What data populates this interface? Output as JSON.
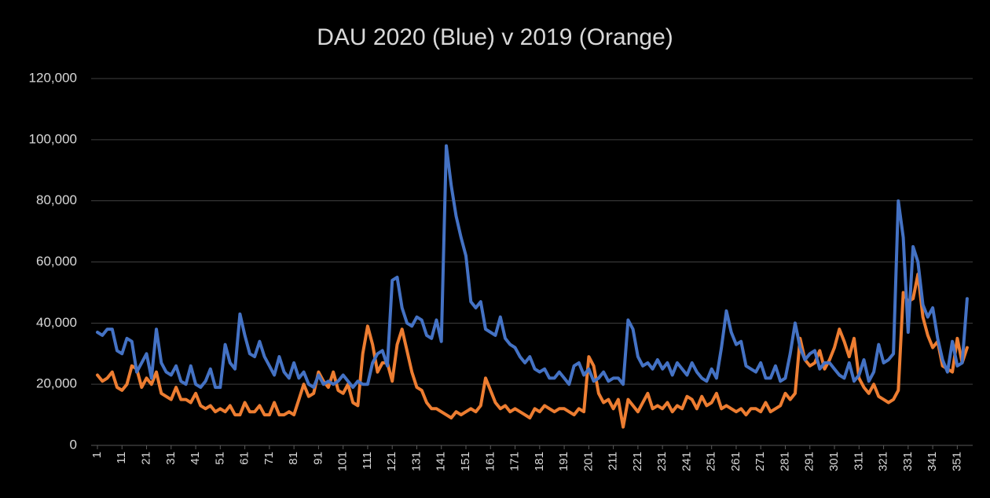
{
  "chart_data": {
    "type": "line",
    "title": "DAU 2020 (Blue) v 2019 (Orange)",
    "x": [
      1,
      3,
      5,
      7,
      9,
      11,
      13,
      15,
      17,
      19,
      21,
      23,
      25,
      27,
      29,
      31,
      33,
      35,
      37,
      39,
      41,
      43,
      45,
      47,
      49,
      51,
      53,
      55,
      57,
      59,
      61,
      63,
      65,
      67,
      69,
      71,
      73,
      75,
      77,
      79,
      81,
      83,
      85,
      87,
      89,
      91,
      93,
      95,
      97,
      99,
      101,
      103,
      105,
      107,
      109,
      111,
      113,
      115,
      117,
      119,
      121,
      123,
      125,
      127,
      129,
      131,
      133,
      135,
      137,
      139,
      141,
      143,
      145,
      147,
      149,
      151,
      153,
      155,
      157,
      159,
      161,
      163,
      165,
      167,
      169,
      171,
      173,
      175,
      177,
      179,
      181,
      183,
      185,
      187,
      189,
      191,
      193,
      195,
      197,
      199,
      201,
      203,
      205,
      207,
      209,
      211,
      213,
      215,
      217,
      219,
      221,
      223,
      225,
      227,
      229,
      231,
      233,
      235,
      237,
      239,
      241,
      243,
      245,
      247,
      249,
      251,
      253,
      255,
      257,
      259,
      261,
      263,
      265,
      267,
      269,
      271,
      273,
      275,
      277,
      279,
      281,
      283,
      285,
      287,
      289,
      291,
      293,
      295,
      297,
      299,
      301,
      303,
      305,
      307,
      309,
      311,
      313,
      315,
      317,
      319,
      321,
      323,
      325,
      327,
      329,
      331,
      333,
      335,
      337,
      339,
      341,
      343,
      345,
      347,
      349,
      351,
      353,
      355
    ],
    "series": [
      {
        "color": "#4472c4",
        "values": [
          37000,
          36000,
          38000,
          38000,
          31000,
          30000,
          35000,
          34000,
          24000,
          27000,
          30000,
          22000,
          38000,
          27000,
          24000,
          23000,
          26000,
          21000,
          20000,
          26000,
          20000,
          19000,
          21000,
          25000,
          19000,
          19000,
          33000,
          27000,
          25000,
          43000,
          36000,
          30000,
          29000,
          34000,
          29000,
          26000,
          23000,
          29000,
          24000,
          22000,
          27000,
          22000,
          24000,
          20000,
          19000,
          23000,
          20000,
          21000,
          20000,
          21000,
          23000,
          21000,
          19000,
          21000,
          20000,
          20000,
          27000,
          30000,
          31000,
          26000,
          54000,
          55000,
          45000,
          40000,
          39000,
          42000,
          41000,
          36000,
          35000,
          41000,
          34000,
          98000,
          85000,
          75000,
          68000,
          62000,
          47000,
          45000,
          47000,
          38000,
          37000,
          36000,
          42000,
          35000,
          33000,
          32000,
          29000,
          27000,
          29000,
          25000,
          24000,
          25000,
          22000,
          22000,
          24000,
          22000,
          20000,
          26000,
          27000,
          23000,
          25000,
          21000,
          22000,
          24000,
          21000,
          22000,
          22000,
          20000,
          41000,
          38000,
          29000,
          26000,
          27000,
          25000,
          28000,
          25000,
          27000,
          23000,
          27000,
          25000,
          23000,
          27000,
          24000,
          22000,
          21000,
          25000,
          22000,
          32000,
          44000,
          37000,
          33000,
          34000,
          26000,
          25000,
          24000,
          27000,
          22000,
          22000,
          26000,
          21000,
          22000,
          30000,
          40000,
          32000,
          28000,
          30000,
          31000,
          25000,
          27000,
          27000,
          25000,
          23000,
          22000,
          27000,
          21000,
          23000,
          28000,
          21000,
          24000,
          33000,
          27000,
          28000,
          30000,
          80000,
          68000,
          37000,
          65000,
          60000,
          46000,
          42000,
          45000,
          35000,
          28000,
          24000,
          34000,
          26000,
          27000,
          48000
        ]
      },
      {
        "color": "#ed7d31",
        "values": [
          23000,
          21000,
          22000,
          24000,
          19000,
          18000,
          20000,
          26000,
          25000,
          19000,
          22000,
          20000,
          24000,
          17000,
          16000,
          15000,
          19000,
          15000,
          15000,
          14000,
          17000,
          13000,
          12000,
          13000,
          11000,
          12000,
          11000,
          13000,
          10000,
          10000,
          14000,
          11000,
          11000,
          13000,
          10000,
          10000,
          14000,
          10000,
          10000,
          11000,
          10000,
          15000,
          20000,
          16000,
          17000,
          24000,
          21000,
          19000,
          24000,
          18000,
          17000,
          20000,
          14000,
          13000,
          30000,
          39000,
          33000,
          24000,
          27000,
          27000,
          21000,
          33000,
          38000,
          31000,
          24000,
          19000,
          18000,
          14000,
          12000,
          12000,
          11000,
          10000,
          9000,
          11000,
          10000,
          11000,
          12000,
          11000,
          13000,
          22000,
          18000,
          14000,
          12000,
          13000,
          11000,
          12000,
          11000,
          10000,
          9000,
          12000,
          11000,
          13000,
          12000,
          11000,
          12000,
          12000,
          11000,
          10000,
          12000,
          11000,
          29000,
          26000,
          17000,
          14000,
          15000,
          12000,
          15000,
          6000,
          15000,
          13000,
          11000,
          14000,
          17000,
          12000,
          13000,
          12000,
          14000,
          11000,
          13000,
          12000,
          16000,
          15000,
          12000,
          16000,
          13000,
          14000,
          17000,
          12000,
          13000,
          12000,
          11000,
          12000,
          10000,
          12000,
          12000,
          11000,
          14000,
          11000,
          12000,
          13000,
          17000,
          15000,
          17000,
          35000,
          28000,
          26000,
          27000,
          31000,
          25000,
          28000,
          32000,
          38000,
          34000,
          29000,
          35000,
          22000,
          19000,
          17000,
          20000,
          16000,
          15000,
          14000,
          15000,
          18000,
          50000,
          47000,
          48000,
          56000,
          42000,
          36000,
          32000,
          34000,
          26000,
          25000,
          24000,
          35000,
          27000,
          32000
        ]
      }
    ],
    "xlim": [
      1,
      356
    ],
    "xticks": [
      1,
      11,
      21,
      31,
      41,
      51,
      61,
      71,
      81,
      91,
      101,
      111,
      121,
      131,
      141,
      151,
      161,
      171,
      181,
      191,
      201,
      211,
      221,
      231,
      241,
      251,
      261,
      271,
      281,
      291,
      301,
      311,
      321,
      331,
      341,
      351
    ],
    "ylim": [
      0,
      120000
    ],
    "yticks": [
      0,
      {
        "value": 20000,
        "label": "20,000"
      },
      {
        "value": 40000,
        "label": "40,000"
      },
      {
        "value": 60000,
        "label": "60,000"
      },
      {
        "value": 80000,
        "label": "80,000"
      },
      {
        "value": 100000,
        "label": "100,000"
      },
      {
        "value": 120000,
        "label": "120,000"
      }
    ],
    "grid": true
  }
}
